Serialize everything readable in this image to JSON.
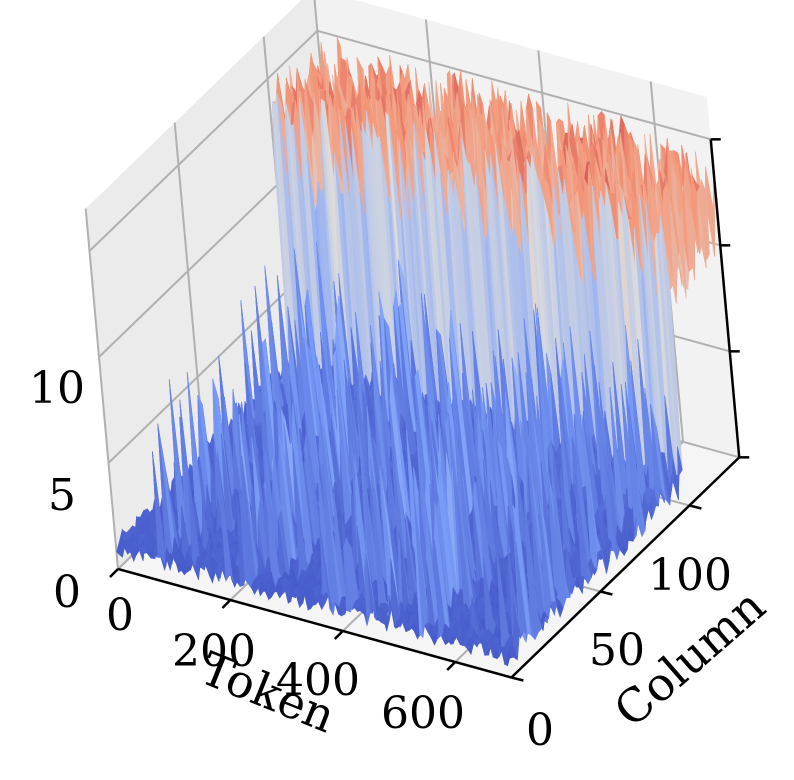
{
  "chart_data": {
    "type": "surface3d",
    "title": "",
    "xlabel": "Token",
    "ylabel": "Column",
    "zlabel": "",
    "x_ticks": [
      0,
      200,
      400,
      600
    ],
    "y_ticks": [
      0,
      50,
      100
    ],
    "z_ticks": [
      0,
      5,
      10
    ],
    "xlim": [
      0,
      700
    ],
    "ylim": [
      0,
      128
    ],
    "zlim": [
      0,
      17
    ],
    "colormap": "coolwarm",
    "colors": {
      "low": "#3b4cc0",
      "mid": "#dddddd",
      "high": "#b40426",
      "pane": "#f2f2f2",
      "grid": "#b0b0b0"
    },
    "surface_summary": {
      "baseline_range": [
        0.5,
        2.5
      ],
      "blue_peak_max": 10,
      "red_region_column_range": [
        100,
        128
      ],
      "red_region_height_range": [
        9,
        15
      ]
    }
  }
}
